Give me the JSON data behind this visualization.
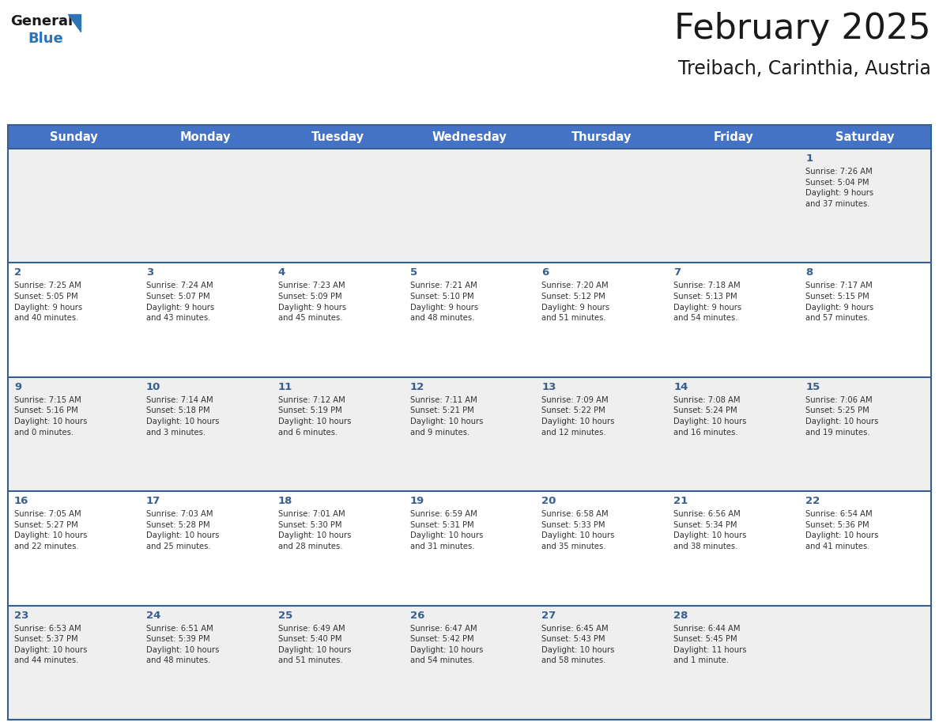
{
  "title": "February 2025",
  "subtitle": "Treibach, Carinthia, Austria",
  "header_bg": "#4472C4",
  "header_text_color": "#FFFFFF",
  "day_names": [
    "Sunday",
    "Monday",
    "Tuesday",
    "Wednesday",
    "Thursday",
    "Friday",
    "Saturday"
  ],
  "row_bg_colors": [
    "#EFEFEF",
    "#FFFFFF",
    "#EFEFEF",
    "#FFFFFF",
    "#EFEFEF"
  ],
  "cell_border_color": "#365F91",
  "title_color": "#1a1a1a",
  "subtitle_color": "#1a1a1a",
  "day_number_color": "#365F91",
  "info_text_color": "#333333",
  "logo_general_color": "#1a1a1a",
  "logo_blue_color": "#2E75B6",
  "weeks": [
    {
      "days": [
        {
          "day": null,
          "info": null
        },
        {
          "day": null,
          "info": null
        },
        {
          "day": null,
          "info": null
        },
        {
          "day": null,
          "info": null
        },
        {
          "day": null,
          "info": null
        },
        {
          "day": null,
          "info": null
        },
        {
          "day": 1,
          "info": "Sunrise: 7:26 AM\nSunset: 5:04 PM\nDaylight: 9 hours\nand 37 minutes."
        }
      ]
    },
    {
      "days": [
        {
          "day": 2,
          "info": "Sunrise: 7:25 AM\nSunset: 5:05 PM\nDaylight: 9 hours\nand 40 minutes."
        },
        {
          "day": 3,
          "info": "Sunrise: 7:24 AM\nSunset: 5:07 PM\nDaylight: 9 hours\nand 43 minutes."
        },
        {
          "day": 4,
          "info": "Sunrise: 7:23 AM\nSunset: 5:09 PM\nDaylight: 9 hours\nand 45 minutes."
        },
        {
          "day": 5,
          "info": "Sunrise: 7:21 AM\nSunset: 5:10 PM\nDaylight: 9 hours\nand 48 minutes."
        },
        {
          "day": 6,
          "info": "Sunrise: 7:20 AM\nSunset: 5:12 PM\nDaylight: 9 hours\nand 51 minutes."
        },
        {
          "day": 7,
          "info": "Sunrise: 7:18 AM\nSunset: 5:13 PM\nDaylight: 9 hours\nand 54 minutes."
        },
        {
          "day": 8,
          "info": "Sunrise: 7:17 AM\nSunset: 5:15 PM\nDaylight: 9 hours\nand 57 minutes."
        }
      ]
    },
    {
      "days": [
        {
          "day": 9,
          "info": "Sunrise: 7:15 AM\nSunset: 5:16 PM\nDaylight: 10 hours\nand 0 minutes."
        },
        {
          "day": 10,
          "info": "Sunrise: 7:14 AM\nSunset: 5:18 PM\nDaylight: 10 hours\nand 3 minutes."
        },
        {
          "day": 11,
          "info": "Sunrise: 7:12 AM\nSunset: 5:19 PM\nDaylight: 10 hours\nand 6 minutes."
        },
        {
          "day": 12,
          "info": "Sunrise: 7:11 AM\nSunset: 5:21 PM\nDaylight: 10 hours\nand 9 minutes."
        },
        {
          "day": 13,
          "info": "Sunrise: 7:09 AM\nSunset: 5:22 PM\nDaylight: 10 hours\nand 12 minutes."
        },
        {
          "day": 14,
          "info": "Sunrise: 7:08 AM\nSunset: 5:24 PM\nDaylight: 10 hours\nand 16 minutes."
        },
        {
          "day": 15,
          "info": "Sunrise: 7:06 AM\nSunset: 5:25 PM\nDaylight: 10 hours\nand 19 minutes."
        }
      ]
    },
    {
      "days": [
        {
          "day": 16,
          "info": "Sunrise: 7:05 AM\nSunset: 5:27 PM\nDaylight: 10 hours\nand 22 minutes."
        },
        {
          "day": 17,
          "info": "Sunrise: 7:03 AM\nSunset: 5:28 PM\nDaylight: 10 hours\nand 25 minutes."
        },
        {
          "day": 18,
          "info": "Sunrise: 7:01 AM\nSunset: 5:30 PM\nDaylight: 10 hours\nand 28 minutes."
        },
        {
          "day": 19,
          "info": "Sunrise: 6:59 AM\nSunset: 5:31 PM\nDaylight: 10 hours\nand 31 minutes."
        },
        {
          "day": 20,
          "info": "Sunrise: 6:58 AM\nSunset: 5:33 PM\nDaylight: 10 hours\nand 35 minutes."
        },
        {
          "day": 21,
          "info": "Sunrise: 6:56 AM\nSunset: 5:34 PM\nDaylight: 10 hours\nand 38 minutes."
        },
        {
          "day": 22,
          "info": "Sunrise: 6:54 AM\nSunset: 5:36 PM\nDaylight: 10 hours\nand 41 minutes."
        }
      ]
    },
    {
      "days": [
        {
          "day": 23,
          "info": "Sunrise: 6:53 AM\nSunset: 5:37 PM\nDaylight: 10 hours\nand 44 minutes."
        },
        {
          "day": 24,
          "info": "Sunrise: 6:51 AM\nSunset: 5:39 PM\nDaylight: 10 hours\nand 48 minutes."
        },
        {
          "day": 25,
          "info": "Sunrise: 6:49 AM\nSunset: 5:40 PM\nDaylight: 10 hours\nand 51 minutes."
        },
        {
          "day": 26,
          "info": "Sunrise: 6:47 AM\nSunset: 5:42 PM\nDaylight: 10 hours\nand 54 minutes."
        },
        {
          "day": 27,
          "info": "Sunrise: 6:45 AM\nSunset: 5:43 PM\nDaylight: 10 hours\nand 58 minutes."
        },
        {
          "day": 28,
          "info": "Sunrise: 6:44 AM\nSunset: 5:45 PM\nDaylight: 11 hours\nand 1 minute."
        },
        {
          "day": null,
          "info": null
        }
      ]
    }
  ]
}
